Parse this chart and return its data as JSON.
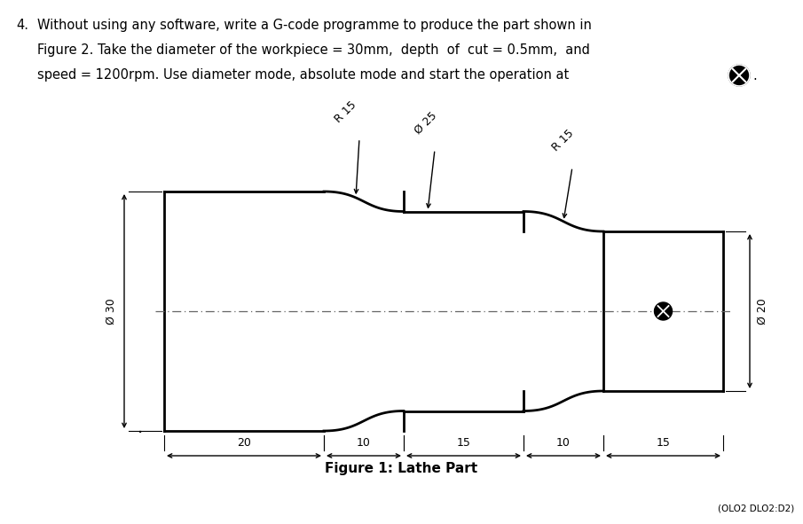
{
  "bg_color": "#ffffff",
  "line_color": "#000000",
  "fig_width": 9.05,
  "fig_height": 5.91,
  "footer_text": "Figure 1: Lathe Part",
  "bottom_note": "(OLO2 DLO2:D2)",
  "dim_20": "20",
  "dim_10a": "10",
  "dim_15a": "15",
  "dim_10b": "10",
  "dim_15b": "15",
  "dim_phi30": "Ø 30",
  "dim_phi20": "Ø 20",
  "dim_phi25": "Ø 25",
  "dim_R15a": "R 15",
  "dim_R15b": "R 15",
  "centerline_color": "#666666",
  "header_fs": 10.5,
  "dim_fs": 9.0
}
